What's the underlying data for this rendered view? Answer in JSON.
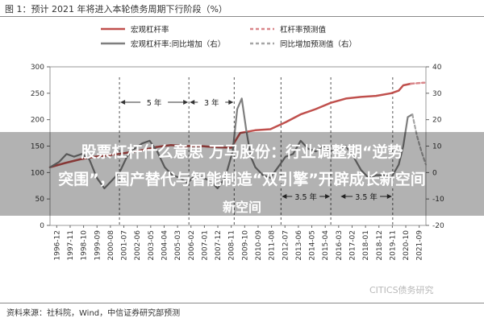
{
  "figure": {
    "title": "图 1：预计 2021 年将进入本轮债务周期下行阶段（%）",
    "source": "资料来源：社科院，Wind，中信证券研究部预测",
    "watermark": "CITICS债务研究"
  },
  "overlay": {
    "line1": "股票杠杆什么意思 万马股份：行业调整期“逆势",
    "line2": "突围”，国产替代与智能制造“双引擎”开辟成长新空间",
    "line3": "新空间"
  },
  "colors": {
    "leverage": "#c0504d",
    "yoy": "#7f7f7f",
    "forecast": "#d9868a",
    "axis": "#666666"
  },
  "chart_data": {
    "type": "line",
    "title": "",
    "xlabel": "",
    "ylabel": "",
    "ylim_left": [
      0,
      300
    ],
    "ylim_right": [
      -20,
      40
    ],
    "left_ticks": [
      0,
      50,
      100,
      150,
      200,
      250,
      300
    ],
    "right_ticks": [
      -20,
      -10,
      0,
      10,
      20,
      30,
      40
    ],
    "x_tick_labels": [
      "1996-12",
      "1997-11",
      "1998-10",
      "1999-09",
      "2000-08",
      "2001-07",
      "2002-06",
      "2003-05",
      "2004-04",
      "2005-03",
      "2006-02",
      "2007-01",
      "2007-12",
      "2008-11",
      "2009-10",
      "2010-09",
      "2011-08",
      "2012-07",
      "2013-06",
      "2014-05",
      "2015-04",
      "2016-03",
      "2017-02",
      "2018-01",
      "2018-12",
      "2019-11",
      "2020-10",
      "2021-09"
    ],
    "legend": [
      {
        "key": "leverage",
        "label": "宏观杠杆率"
      },
      {
        "key": "forecast_lev",
        "label": "杠杆率预测值"
      },
      {
        "key": "yoy",
        "label": "宏观杠杆率:同比增加（右）"
      },
      {
        "key": "forecast_yoy",
        "label": "同比增加预测值（右）"
      }
    ],
    "annotations": [
      {
        "label": "5 年",
        "from": 2001.5,
        "to": 2006.1
      },
      {
        "label": "3 年",
        "from": 2006.1,
        "to": 2009.1
      },
      {
        "label": "3.5 年",
        "from": 2012.2,
        "to": 2015.5
      },
      {
        "label": "3.5 年",
        "from": 2016.1,
        "to": 2019.6
      }
    ],
    "cycle_lines_x": [
      2001.5,
      2006.1,
      2009.1,
      2012.2,
      2015.5,
      2019.6
    ],
    "series": [
      {
        "name": "宏观杠杆率",
        "axis": "left",
        "x": [
          1996.9,
          1997.9,
          1998.9,
          1999.9,
          2000.9,
          2001.9,
          2002.9,
          2003.9,
          2004.9,
          2005.9,
          2006.9,
          2007.9,
          2008.9,
          2009.5,
          2010.5,
          2011.5,
          2012.5,
          2013.5,
          2014.5,
          2015.5,
          2016.5,
          2017.5,
          2018.5,
          2019.5,
          2020.0,
          2020.3,
          2020.8
        ],
        "values": [
          110,
          118,
          125,
          130,
          133,
          137,
          142,
          148,
          152,
          150,
          150,
          148,
          147,
          175,
          180,
          182,
          195,
          210,
          220,
          232,
          240,
          243,
          245,
          250,
          255,
          265,
          268
        ]
      },
      {
        "name": "杠杆率预测值",
        "axis": "left",
        "x": [
          2020.8,
          2021.2,
          2021.7
        ],
        "values": [
          268,
          269,
          270
        ]
      },
      {
        "name": "宏观杠杆率:同比增加（右）",
        "axis": "right",
        "x": [
          1996.9,
          1997.5,
          1998.0,
          1998.5,
          1999.0,
          1999.5,
          2000.0,
          2000.5,
          2001.0,
          2001.5,
          2002.0,
          2002.5,
          2003.0,
          2003.5,
          2004.0,
          2004.5,
          2005.0,
          2005.5,
          2006.0,
          2006.5,
          2007.0,
          2007.5,
          2008.0,
          2008.5,
          2009.0,
          2009.3,
          2009.6,
          2009.9,
          2010.2,
          2010.5,
          2011.0,
          2011.5,
          2012.0,
          2012.5,
          2013.0,
          2013.5,
          2014.0,
          2014.5,
          2015.0,
          2015.5,
          2016.0,
          2016.5,
          2017.0,
          2017.5,
          2018.0,
          2018.5,
          2019.0,
          2019.5,
          2020.0,
          2020.3,
          2020.6,
          2020.9
        ],
        "values": [
          2,
          4,
          7,
          6,
          7,
          5,
          -2,
          -6,
          -3,
          0,
          6,
          9,
          11,
          12,
          8,
          2,
          -1,
          -2,
          -4,
          -1,
          -2,
          -3,
          -6,
          -2,
          8,
          24,
          28,
          16,
          6,
          2,
          -1,
          -2,
          2,
          6,
          7,
          12,
          9,
          8,
          10,
          8,
          9,
          10,
          6,
          1,
          -2,
          -1,
          -1,
          -2,
          3,
          10,
          21,
          22
        ]
      },
      {
        "name": "同比增加预测值（右）",
        "axis": "right",
        "x": [
          2020.9,
          2021.2,
          2021.5,
          2021.8
        ],
        "values": [
          22,
          14,
          8,
          3
        ]
      }
    ]
  }
}
